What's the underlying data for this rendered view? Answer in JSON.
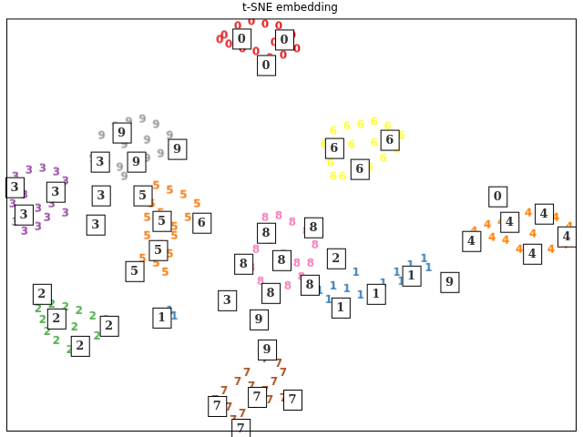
{
  "chart_data": {
    "type": "scatter",
    "title": "t-SNE embedding",
    "xlim": [
      0,
      627
    ],
    "ylim": [
      0,
      452
    ],
    "grid": false,
    "tick_labels": false,
    "marker": "digit",
    "series": [
      {
        "name": "0",
        "color": "#e41a1c",
        "values": [
          [
            240,
            434
          ],
          [
            255,
            444
          ],
          [
            270,
            449
          ],
          [
            285,
            446
          ],
          [
            300,
            444
          ],
          [
            315,
            434
          ],
          [
            320,
            419
          ],
          [
            305,
            412
          ],
          [
            290,
            409
          ],
          [
            275,
            416
          ],
          [
            260,
            419
          ],
          [
            245,
            424
          ],
          [
            235,
            429
          ],
          [
            265,
            432
          ],
          [
            295,
            426
          ],
          [
            280,
            404
          ]
        ]
      },
      {
        "name": "1",
        "color": "#377eb8",
        "values": [
          [
            345,
            154
          ],
          [
            360,
            159
          ],
          [
            375,
            156
          ],
          [
            390,
            149
          ],
          [
            405,
            152
          ],
          [
            415,
            162
          ],
          [
            430,
            174
          ],
          [
            445,
            182
          ],
          [
            460,
            189
          ],
          [
            465,
            179
          ],
          [
            450,
            169
          ],
          [
            435,
            164
          ],
          [
            355,
            144
          ],
          [
            370,
            139
          ],
          [
            385,
            174
          ],
          [
            175,
            129
          ],
          [
            185,
            126
          ],
          [
            180,
            132
          ]
        ]
      },
      {
        "name": "2",
        "color": "#4daf4a",
        "values": [
          [
            35,
            134
          ],
          [
            50,
            139
          ],
          [
            65,
            136
          ],
          [
            80,
            132
          ],
          [
            95,
            126
          ],
          [
            110,
            122
          ],
          [
            115,
            112
          ],
          [
            100,
            104
          ],
          [
            85,
            96
          ],
          [
            70,
            89
          ],
          [
            55,
            99
          ],
          [
            45,
            109
          ],
          [
            40,
            122
          ],
          [
            75,
            114
          ],
          [
            60,
            124
          ]
        ]
      },
      {
        "name": "3",
        "color": "#984ea3",
        "values": [
          [
            10,
            279
          ],
          [
            25,
            286
          ],
          [
            40,
            288
          ],
          [
            55,
            284
          ],
          [
            65,
            274
          ],
          [
            60,
            259
          ],
          [
            50,
            249
          ],
          [
            45,
            234
          ],
          [
            35,
            224
          ],
          [
            20,
            219
          ],
          [
            10,
            229
          ],
          [
            7,
            249
          ],
          [
            20,
            259
          ],
          [
            35,
            244
          ],
          [
            65,
            239
          ],
          [
            25,
            234
          ]
        ]
      },
      {
        "name": "4",
        "color": "#ff7f00",
        "values": [
          [
            515,
            219
          ],
          [
            530,
            226
          ],
          [
            545,
            229
          ],
          [
            560,
            234
          ],
          [
            575,
            239
          ],
          [
            590,
            242
          ],
          [
            605,
            234
          ],
          [
            620,
            224
          ],
          [
            627,
            212
          ],
          [
            615,
            204
          ],
          [
            600,
            199
          ],
          [
            585,
            194
          ],
          [
            565,
            199
          ],
          [
            550,
            209
          ],
          [
            535,
            212
          ],
          [
            580,
            216
          ]
        ]
      },
      {
        "name": "5",
        "color": "#f57c12",
        "values": [
          [
            165,
            269
          ],
          [
            180,
            264
          ],
          [
            195,
            259
          ],
          [
            210,
            249
          ],
          [
            200,
            234
          ],
          [
            185,
            224
          ],
          [
            170,
            239
          ],
          [
            160,
            249
          ],
          [
            155,
            214
          ],
          [
            170,
            204
          ],
          [
            180,
            194
          ],
          [
            165,
            184
          ],
          [
            150,
            189
          ],
          [
            185,
            214
          ],
          [
            155,
            234
          ],
          [
            175,
            174
          ]
        ]
      },
      {
        "name": "6",
        "color": "#ffff33",
        "values": [
          [
            350,
            314
          ],
          [
            360,
            329
          ],
          [
            375,
            334
          ],
          [
            390,
            336
          ],
          [
            405,
            339
          ],
          [
            420,
            334
          ],
          [
            435,
            324
          ],
          [
            430,
            309
          ],
          [
            415,
            299
          ],
          [
            400,
            289
          ],
          [
            385,
            284
          ],
          [
            370,
            279
          ],
          [
            357,
            294
          ],
          [
            380,
            314
          ],
          [
            405,
            316
          ],
          [
            360,
            279
          ]
        ]
      },
      {
        "name": "7",
        "color": "#a65628",
        "values": [
          [
            285,
            79
          ],
          [
            300,
            74
          ],
          [
            305,
            64
          ],
          [
            295,
            54
          ],
          [
            285,
            44
          ],
          [
            270,
            49
          ],
          [
            255,
            54
          ],
          [
            240,
            44
          ],
          [
            230,
            34
          ],
          [
            245,
            26
          ],
          [
            260,
            19
          ],
          [
            275,
            29
          ],
          [
            290,
            34
          ],
          [
            305,
            36
          ],
          [
            265,
            64
          ],
          [
            250,
            12
          ]
        ]
      },
      {
        "name": "8",
        "color": "#f781bf",
        "values": [
          [
            285,
            234
          ],
          [
            300,
            236
          ],
          [
            315,
            229
          ],
          [
            330,
            219
          ],
          [
            340,
            204
          ],
          [
            335,
            184
          ],
          [
            325,
            169
          ],
          [
            310,
            159
          ],
          [
            295,
            154
          ],
          [
            280,
            164
          ],
          [
            270,
            179
          ],
          [
            275,
            199
          ],
          [
            290,
            209
          ],
          [
            305,
            194
          ],
          [
            320,
            184
          ],
          [
            280,
            219
          ]
        ]
      },
      {
        "name": "9",
        "color": "#999999",
        "values": [
          [
            105,
            324
          ],
          [
            120,
            334
          ],
          [
            135,
            339
          ],
          [
            150,
            342
          ],
          [
            165,
            336
          ],
          [
            180,
            324
          ],
          [
            185,
            309
          ],
          [
            170,
            304
          ],
          [
            155,
            299
          ],
          [
            140,
            294
          ],
          [
            125,
            289
          ],
          [
            110,
            294
          ],
          [
            95,
            299
          ],
          [
            130,
            314
          ],
          [
            155,
            319
          ],
          [
            130,
            279
          ]
        ]
      }
    ],
    "thumbnails": [
      {
        "x": 259,
        "y": 430,
        "label": "0"
      },
      {
        "x": 306,
        "y": 429,
        "label": "0"
      },
      {
        "x": 286,
        "y": 401,
        "label": "0"
      },
      {
        "x": 361,
        "y": 310,
        "label": "6"
      },
      {
        "x": 422,
        "y": 319,
        "label": "6"
      },
      {
        "x": 389,
        "y": 287,
        "label": "6"
      },
      {
        "x": 127,
        "y": 327,
        "label": "9"
      },
      {
        "x": 188,
        "y": 309,
        "label": "9"
      },
      {
        "x": 103,
        "y": 295,
        "label": "3"
      },
      {
        "x": 143,
        "y": 295,
        "label": "9"
      },
      {
        "x": 9,
        "y": 267,
        "label": "3"
      },
      {
        "x": 54,
        "y": 262,
        "label": "3"
      },
      {
        "x": 19,
        "y": 237,
        "label": "3"
      },
      {
        "x": 104,
        "y": 258,
        "label": "3"
      },
      {
        "x": 98,
        "y": 226,
        "label": "3"
      },
      {
        "x": 150,
        "y": 258,
        "label": "5"
      },
      {
        "x": 171,
        "y": 230,
        "label": "5"
      },
      {
        "x": 215,
        "y": 228,
        "label": "6"
      },
      {
        "x": 167,
        "y": 198,
        "label": "5"
      },
      {
        "x": 141,
        "y": 175,
        "label": "5"
      },
      {
        "x": 541,
        "y": 257,
        "label": "0"
      },
      {
        "x": 554,
        "y": 229,
        "label": "4"
      },
      {
        "x": 592,
        "y": 238,
        "label": "4"
      },
      {
        "x": 512,
        "y": 208,
        "label": "4"
      },
      {
        "x": 579,
        "y": 194,
        "label": "4"
      },
      {
        "x": 617,
        "y": 213,
        "label": "4"
      },
      {
        "x": 286,
        "y": 217,
        "label": "8"
      },
      {
        "x": 338,
        "y": 223,
        "label": "8"
      },
      {
        "x": 261,
        "y": 183,
        "label": "8"
      },
      {
        "x": 303,
        "y": 187,
        "label": "8"
      },
      {
        "x": 363,
        "y": 189,
        "label": "2"
      },
      {
        "x": 291,
        "y": 151,
        "label": "8"
      },
      {
        "x": 334,
        "y": 160,
        "label": "8"
      },
      {
        "x": 243,
        "y": 143,
        "label": "3"
      },
      {
        "x": 278,
        "y": 122,
        "label": "9"
      },
      {
        "x": 368,
        "y": 135,
        "label": "1"
      },
      {
        "x": 407,
        "y": 150,
        "label": "1"
      },
      {
        "x": 446,
        "y": 170,
        "label": "1"
      },
      {
        "x": 488,
        "y": 163,
        "label": "9"
      },
      {
        "x": 171,
        "y": 124,
        "label": "1"
      },
      {
        "x": 39,
        "y": 150,
        "label": "2"
      },
      {
        "x": 55,
        "y": 123,
        "label": "2"
      },
      {
        "x": 113,
        "y": 115,
        "label": "2"
      },
      {
        "x": 81,
        "y": 93,
        "label": "2"
      },
      {
        "x": 287,
        "y": 89,
        "label": "9"
      },
      {
        "x": 232,
        "y": 27,
        "label": "7"
      },
      {
        "x": 276,
        "y": 37,
        "label": "7"
      },
      {
        "x": 315,
        "y": 34,
        "label": "7"
      },
      {
        "x": 258,
        "y": 2,
        "label": "7"
      }
    ]
  }
}
